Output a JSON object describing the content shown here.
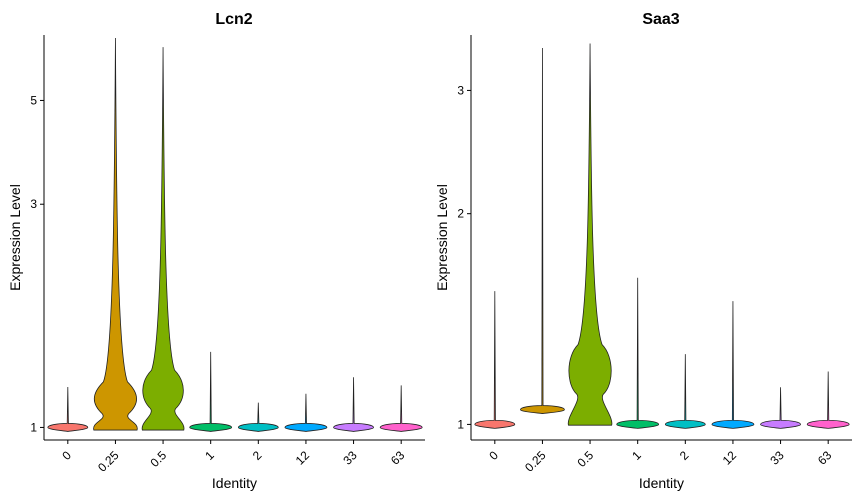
{
  "chart_data": [
    {
      "type": "violin",
      "title": "Lcn2",
      "xlabel": "Identity",
      "ylabel": "Expression Level",
      "y_scale": "log",
      "y_ticks": [
        1,
        3,
        5
      ],
      "ylim": [
        0.94,
        6.9
      ],
      "categories": [
        "0",
        "0.25",
        "0.5",
        "1",
        "2",
        "12",
        "33",
        "63"
      ],
      "colors": [
        "#F8766D",
        "#CD9600",
        "#7CAE00",
        "#00BE67",
        "#00BFC4",
        "#00A9FF",
        "#C77CFF",
        "#FF61CC"
      ],
      "violins": [
        {
          "max": 1.22,
          "center": 1.0,
          "bulge": 1.0,
          "half_width": 20
        },
        {
          "max": 6.8,
          "center": 1.12,
          "bulge": 1.18,
          "half_width": 24
        },
        {
          "max": 6.5,
          "center": 1.18,
          "bulge": 1.25,
          "half_width": 23
        },
        {
          "max": 1.45,
          "center": 1.0,
          "bulge": 1.0,
          "half_width": 21
        },
        {
          "max": 1.13,
          "center": 1.0,
          "bulge": 1.0,
          "half_width": 20
        },
        {
          "max": 1.18,
          "center": 1.0,
          "bulge": 1.0,
          "half_width": 21
        },
        {
          "max": 1.28,
          "center": 1.0,
          "bulge": 1.0,
          "half_width": 20
        },
        {
          "max": 1.23,
          "center": 1.0,
          "bulge": 1.0,
          "half_width": 21
        }
      ]
    },
    {
      "type": "violin",
      "title": "Saa3",
      "xlabel": "Identity",
      "ylabel": "Expression Level",
      "y_scale": "log",
      "y_ticks": [
        1,
        2,
        3
      ],
      "ylim": [
        0.95,
        3.6
      ],
      "categories": [
        "0",
        "0.25",
        "0.5",
        "1",
        "2",
        "12",
        "33",
        "63"
      ],
      "colors": [
        "#F8766D",
        "#CD9600",
        "#7CAE00",
        "#00BE67",
        "#00BFC4",
        "#00A9FF",
        "#C77CFF",
        "#FF61CC"
      ],
      "violins": [
        {
          "max": 1.55,
          "center": 1.0,
          "bulge": 1.0,
          "half_width": 20
        },
        {
          "max": 3.45,
          "center": 1.05,
          "bulge": 1.06,
          "half_width": 22
        },
        {
          "max": 3.5,
          "center": 1.2,
          "bulge": 1.25,
          "half_width": 24
        },
        {
          "max": 1.62,
          "center": 1.0,
          "bulge": 1.0,
          "half_width": 21
        },
        {
          "max": 1.26,
          "center": 1.0,
          "bulge": 1.0,
          "half_width": 20
        },
        {
          "max": 1.5,
          "center": 1.0,
          "bulge": 1.0,
          "half_width": 21
        },
        {
          "max": 1.13,
          "center": 1.0,
          "bulge": 1.0,
          "half_width": 20
        },
        {
          "max": 1.19,
          "center": 1.0,
          "bulge": 1.0,
          "half_width": 21
        }
      ]
    }
  ]
}
